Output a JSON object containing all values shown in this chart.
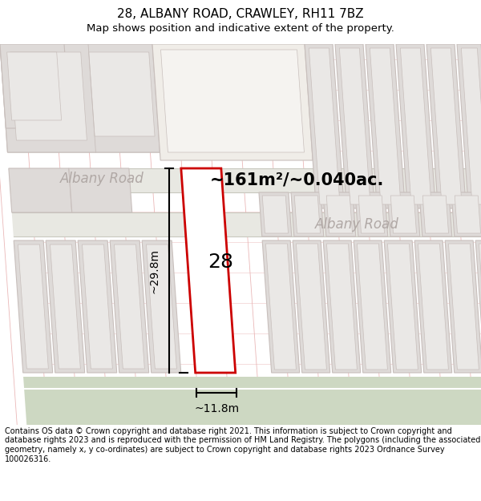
{
  "title": "28, ALBANY ROAD, CRAWLEY, RH11 7BZ",
  "subtitle": "Map shows position and indicative extent of the property.",
  "footer": "Contains OS data © Crown copyright and database right 2021. This information is subject to Crown copyright and database rights 2023 and is reproduced with the permission of HM Land Registry. The polygons (including the associated geometry, namely x, y co-ordinates) are subject to Crown copyright and database rights 2023 Ordnance Survey 100026316.",
  "area_label": "~161m²/~0.040ac.",
  "dim_height": "~29.8m",
  "dim_width": "~11.8m",
  "road_label_1": "Albany Road",
  "road_label_2": "Albany Road",
  "property_number": "28",
  "map_bg": "#f5f2f0",
  "road_fill": "#cdd8c2",
  "building_fill": "#dedad8",
  "building_inner_fill": "#eae8e6",
  "building_stroke": "#c8bfbc",
  "road_edge_color": "#c8c8c0",
  "property_stroke": "#cc0000",
  "property_fill": "#ffffff",
  "grid_line_color": "#e8b0b0",
  "road_text_color": "#b0a8a5",
  "title_fontsize": 11,
  "subtitle_fontsize": 9.5,
  "footer_fontsize": 7.0,
  "area_fontsize": 15,
  "dim_fontsize": 10,
  "road_fontsize": 12,
  "num_fontsize": 18
}
